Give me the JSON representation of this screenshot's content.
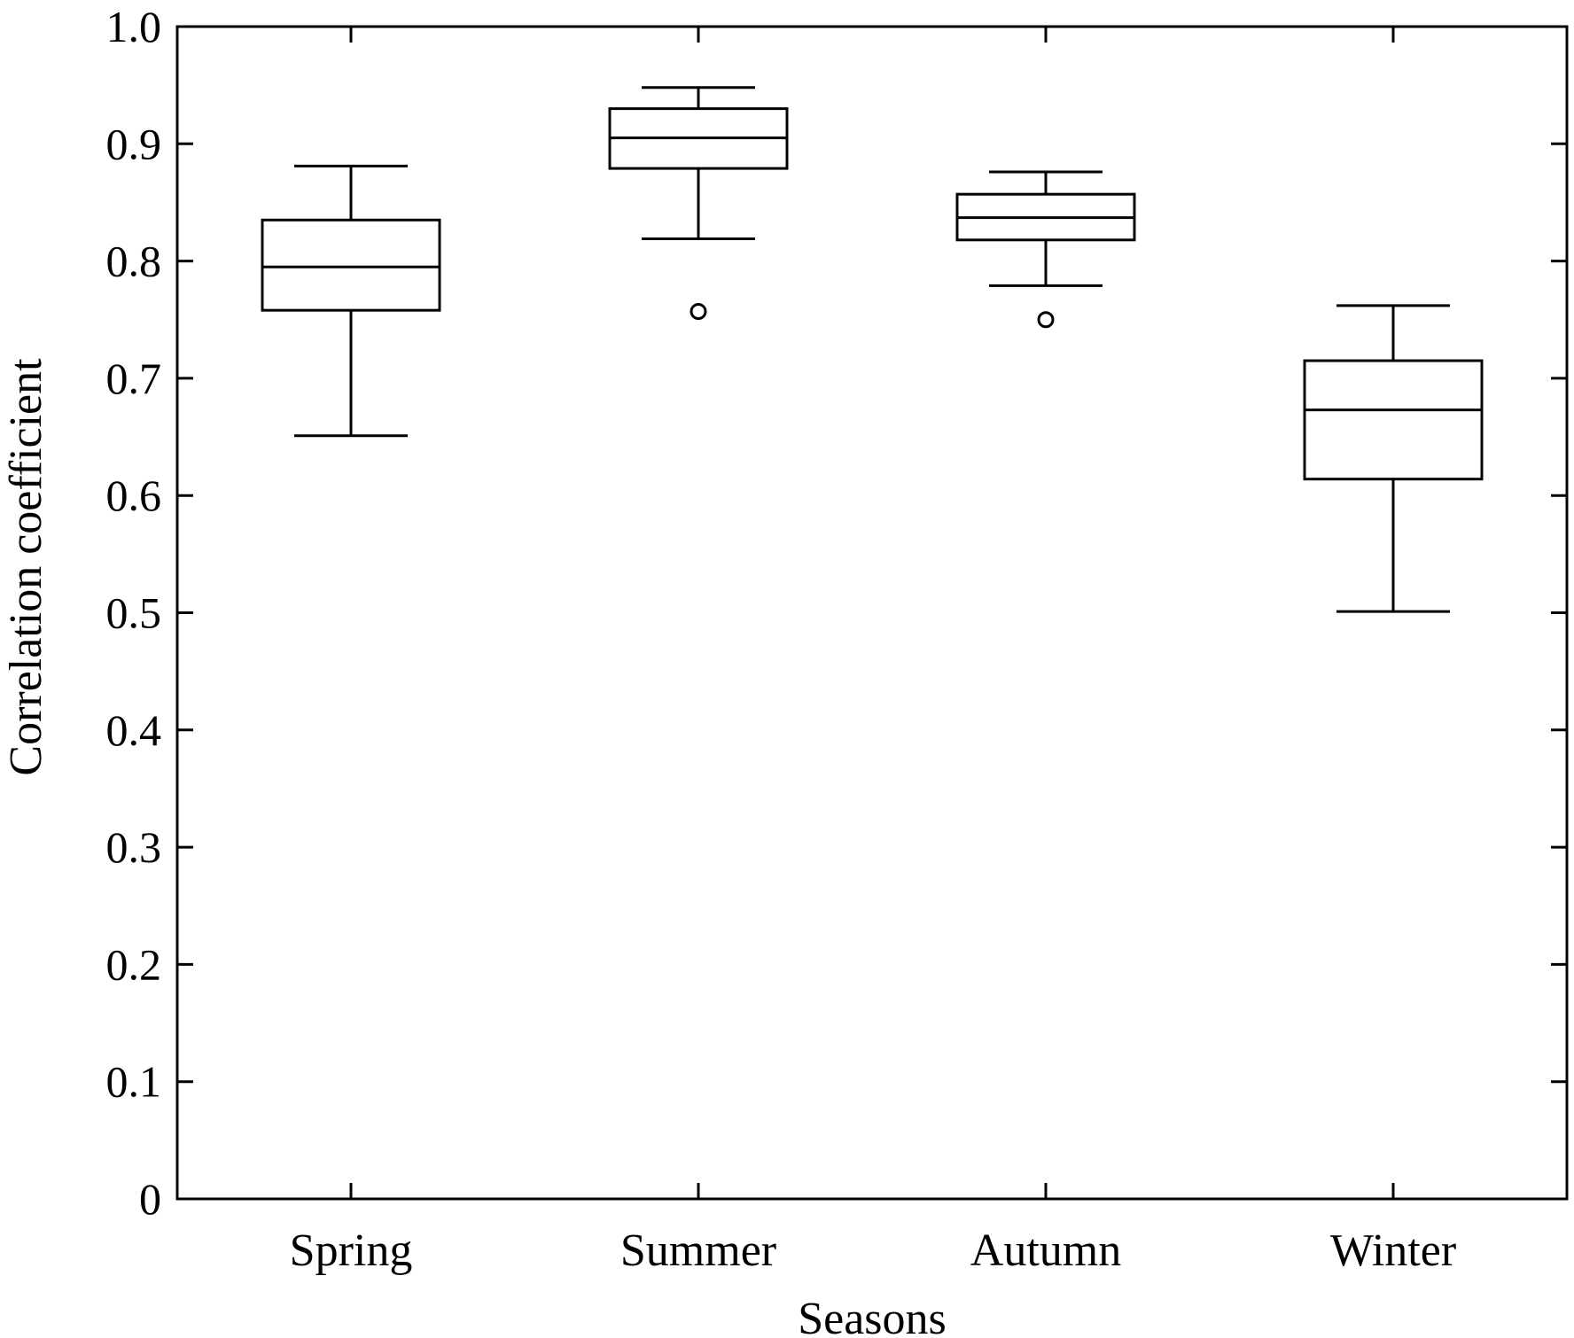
{
  "chart_data": {
    "type": "box",
    "title": "",
    "xlabel": "Seasons",
    "ylabel": "Correlation coefficient",
    "ylim": [
      0,
      1.0
    ],
    "yticks": [
      "0",
      "0.1",
      "0.2",
      "0.3",
      "0.4",
      "0.5",
      "0.6",
      "0.7",
      "0.8",
      "0.9",
      "1.0"
    ],
    "categories": [
      "Spring",
      "Summer",
      "Autumn",
      "Winter"
    ],
    "boxes": [
      {
        "category": "Spring",
        "whisker_low": 0.651,
        "q1": 0.758,
        "median": 0.795,
        "q3": 0.835,
        "whisker_high": 0.881,
        "outliers": []
      },
      {
        "category": "Summer",
        "whisker_low": 0.819,
        "q1": 0.879,
        "median": 0.905,
        "q3": 0.93,
        "whisker_high": 0.948,
        "outliers": [
          0.757
        ]
      },
      {
        "category": "Autumn",
        "whisker_low": 0.779,
        "q1": 0.818,
        "median": 0.837,
        "q3": 0.857,
        "whisker_high": 0.876,
        "outliers": [
          0.75
        ]
      },
      {
        "category": "Winter",
        "whisker_low": 0.501,
        "q1": 0.614,
        "median": 0.673,
        "q3": 0.715,
        "whisker_high": 0.762,
        "outliers": []
      }
    ],
    "grid": false,
    "legend": "none",
    "colors": {
      "stroke": "#000000",
      "background": "#ffffff"
    }
  }
}
